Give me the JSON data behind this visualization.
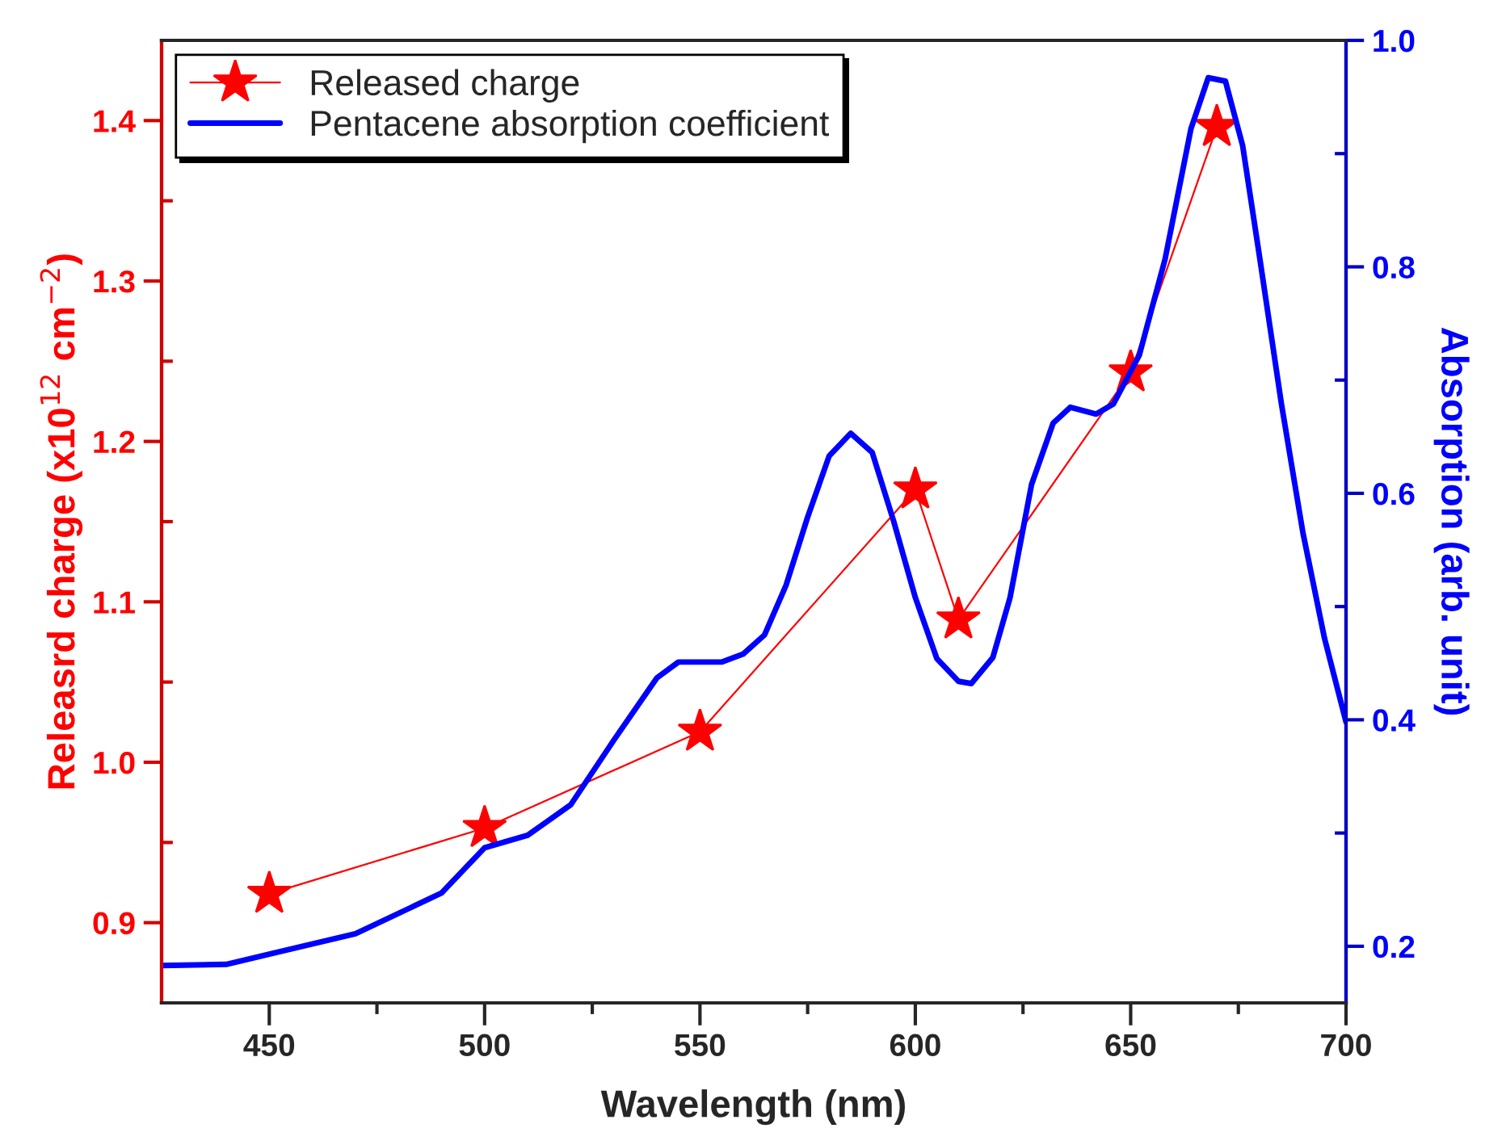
{
  "chart_data": {
    "type": "line",
    "xlabel": "Wavelength (nm)",
    "ylabel": "Releasrd charge (x10$^{12}$ cm$^{−2}$)",
    "y2label": "Absorption (arb. unit)",
    "xlim": [
      425,
      700
    ],
    "xticks": [
      450,
      {
        "value": 475,
        "label": null
      },
      500,
      {
        "value": 525,
        "label": null
      },
      550,
      {
        "value": 575,
        "label": null
      },
      600,
      {
        "value": 625,
        "label": null
      },
      650,
      {
        "value": 675,
        "label": null
      },
      700
    ],
    "ylim": [
      0.85,
      1.45
    ],
    "yticks": [
      {
        "value": 0.9,
        "label": "0.9"
      },
      {
        "value": 0.95,
        "label": null
      },
      {
        "value": 1.0,
        "label": "1.0"
      },
      {
        "value": 1.05,
        "label": null
      },
      {
        "value": 1.1,
        "label": "1.1"
      },
      {
        "value": 1.15,
        "label": null
      },
      {
        "value": 1.2,
        "label": "1.2"
      },
      {
        "value": 1.25,
        "label": null
      },
      {
        "value": 1.3,
        "label": "1.3"
      },
      {
        "value": 1.35,
        "label": null
      },
      {
        "value": 1.4,
        "label": "1.4"
      }
    ],
    "y2lim": [
      0.15,
      1.0
    ],
    "y2ticks": [
      0.2,
      {
        "value": 0.3,
        "label": null
      },
      0.4,
      {
        "value": 0.5,
        "label": null
      },
      0.6,
      {
        "value": 0.7,
        "label": null
      },
      0.8,
      {
        "value": 0.9,
        "label": null
      },
      {
        "value": 1.0,
        "label": "1.0"
      }
    ],
    "legend": "top left",
    "grid": false,
    "series": [
      {
        "name": "Released charge",
        "color": "#ff0000",
        "marker": "star",
        "x": [
          450,
          500,
          550,
          600,
          610,
          650,
          670
        ],
        "values": [
          0.918,
          0.959,
          1.019,
          1.17,
          1.089,
          1.243,
          1.396
        ]
      },
      {
        "name": "Pentacene absorption coefficient",
        "color": "#0000ff",
        "axis": "y2",
        "marker": "none",
        "x": [
          425,
          440,
          450,
          470,
          490,
          500,
          510,
          520,
          530,
          540,
          545,
          555,
          560,
          565,
          570,
          575,
          580,
          585,
          590,
          595,
          600,
          605,
          610,
          613,
          618,
          622,
          627,
          632,
          636,
          642,
          646,
          652,
          658,
          664,
          668,
          672,
          676,
          680,
          685,
          690,
          695,
          700
        ],
        "values": [
          0.183,
          0.184,
          0.193,
          0.211,
          0.247,
          0.287,
          0.298,
          0.325,
          0.382,
          0.437,
          0.451,
          0.451,
          0.458,
          0.475,
          0.519,
          0.579,
          0.633,
          0.653,
          0.636,
          0.575,
          0.508,
          0.454,
          0.434,
          0.432,
          0.455,
          0.508,
          0.608,
          0.662,
          0.676,
          0.67,
          0.679,
          0.722,
          0.807,
          0.922,
          0.967,
          0.964,
          0.907,
          0.807,
          0.679,
          0.565,
          0.472,
          0.398
        ]
      }
    ]
  }
}
